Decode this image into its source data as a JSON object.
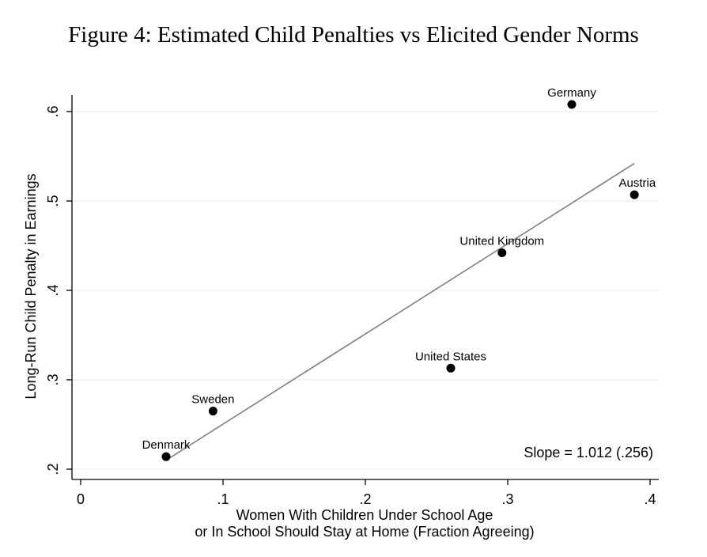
{
  "title": "Figure 4: Estimated Child Penalties vs Elicited Gender Norms",
  "chart_data": {
    "type": "scatter",
    "title": "Figure 4: Estimated Child Penalties vs Elicited Gender Norms",
    "xlabel_lines": [
      "Women With Children Under School Age",
      "or In School Should Stay at Home (Fraction Agreeing)"
    ],
    "ylabel": "Long-Run Child Penalty in Earnings",
    "xlim": [
      0,
      0.4
    ],
    "ylim": [
      0.2,
      0.6
    ],
    "x_ticks": [
      {
        "value": 0,
        "label": "0"
      },
      {
        "value": 0.1,
        "label": ".1"
      },
      {
        "value": 0.2,
        "label": ".2"
      },
      {
        "value": 0.3,
        "label": ".3"
      },
      {
        "value": 0.4,
        "label": ".4"
      }
    ],
    "y_ticks": [
      {
        "value": 0.2,
        "label": ".2"
      },
      {
        "value": 0.3,
        "label": ".3"
      },
      {
        "value": 0.4,
        "label": ".4"
      },
      {
        "value": 0.5,
        "label": ".5"
      },
      {
        "value": 0.6,
        "label": ".6"
      }
    ],
    "grid": "horizontal",
    "points": [
      {
        "label": "Denmark",
        "x": 0.06,
        "y": 0.214
      },
      {
        "label": "Sweden",
        "x": 0.093,
        "y": 0.265
      },
      {
        "label": "United States",
        "x": 0.26,
        "y": 0.313
      },
      {
        "label": "United Kingdom",
        "x": 0.296,
        "y": 0.442
      },
      {
        "label": "Germany",
        "x": 0.345,
        "y": 0.608
      },
      {
        "label": "Austria",
        "x": 0.389,
        "y": 0.507
      }
    ],
    "fit_line": {
      "x0": 0.06,
      "y0": 0.21,
      "x1": 0.389,
      "y1": 0.542
    },
    "annotation": "Slope = 1.012 (.256)",
    "colors": {
      "points": "#000000",
      "fit_line": "#808080",
      "grid": "#eaeef2",
      "axis": "#000000"
    }
  }
}
